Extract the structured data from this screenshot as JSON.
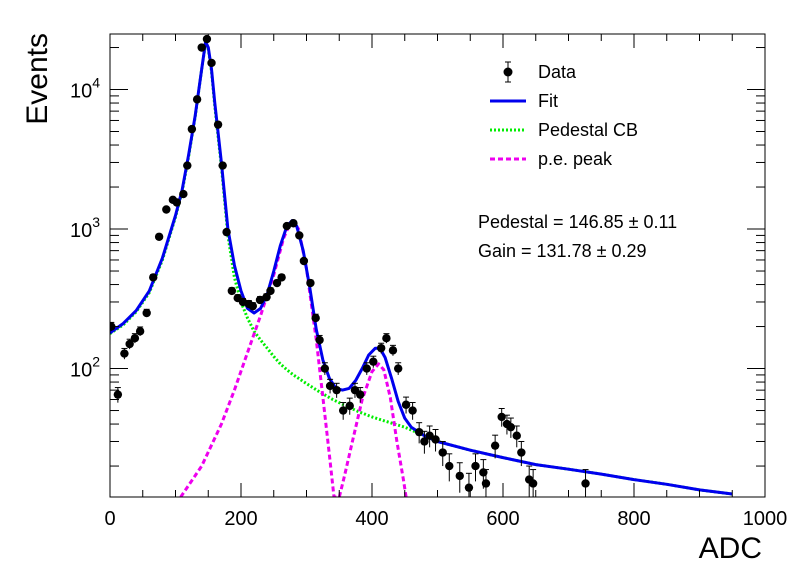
{
  "chart_data": {
    "type": "scatter",
    "xlabel": "ADC",
    "ylabel": "Events",
    "xlim": [
      0,
      1000
    ],
    "ylim": [
      12,
      25000
    ],
    "yscale": "log",
    "x_ticks": [
      {
        "value": 0,
        "label": "0"
      },
      {
        "value": 200,
        "label": "200"
      },
      {
        "value": 400,
        "label": "400"
      },
      {
        "value": 600,
        "label": "600"
      },
      {
        "value": 800,
        "label": "800"
      },
      {
        "value": 1000,
        "label": "1000"
      }
    ],
    "y_ticks": [
      {
        "value": 100,
        "base": "10",
        "exp": "2"
      },
      {
        "value": 1000,
        "base": "10",
        "exp": "3"
      },
      {
        "value": 10000,
        "base": "10",
        "exp": "4"
      }
    ],
    "grid": false,
    "legend_position": "top-right",
    "legend": [
      {
        "label": "Data",
        "series": "data"
      },
      {
        "label": "Fit",
        "series": "fit"
      },
      {
        "label": "Pedestal CB",
        "series": "pedestal"
      },
      {
        "label": "p.e. peak",
        "series": "pe"
      }
    ],
    "annotations": [
      {
        "label": "Pedestal = 146.85",
        "pm": "±",
        "value": "0.11"
      },
      {
        "label": "Gain = 131.78",
        "pm": "±",
        "value": "0.29"
      }
    ],
    "colors": {
      "data": "#000000",
      "fit": "#0000ee",
      "pedestal": "#00ee00",
      "pe": "#ee00ee"
    },
    "series": [
      {
        "id": "data",
        "style": "markers-errorbars",
        "points": [
          [
            2,
            200
          ],
          [
            12,
            65
          ],
          [
            22,
            128
          ],
          [
            30,
            150
          ],
          [
            38,
            165
          ],
          [
            46,
            185
          ],
          [
            56,
            250
          ],
          [
            66,
            450
          ],
          [
            75,
            880
          ],
          [
            86,
            1380
          ],
          [
            96,
            1620
          ],
          [
            102,
            1550
          ],
          [
            112,
            1780
          ],
          [
            118,
            2850
          ],
          [
            125,
            5200
          ],
          [
            133,
            8500
          ],
          [
            140,
            20000
          ],
          [
            148,
            23000
          ],
          [
            155,
            15500
          ],
          [
            165,
            5600
          ],
          [
            172,
            2850
          ],
          [
            178,
            950
          ],
          [
            186,
            360
          ],
          [
            195,
            320
          ],
          [
            203,
            300
          ],
          [
            212,
            290
          ],
          [
            218,
            280
          ],
          [
            229,
            310
          ],
          [
            239,
            325
          ],
          [
            245,
            360
          ],
          [
            255,
            410
          ],
          [
            262,
            450
          ],
          [
            270,
            1050
          ],
          [
            280,
            1100
          ],
          [
            289,
            900
          ],
          [
            296,
            590
          ],
          [
            306,
            410
          ],
          [
            314,
            230
          ],
          [
            320,
            160
          ],
          [
            328,
            100
          ],
          [
            336,
            75
          ],
          [
            346,
            70
          ],
          [
            356,
            50
          ],
          [
            366,
            54
          ],
          [
            374,
            70
          ],
          [
            382,
            65
          ],
          [
            392,
            100
          ],
          [
            402,
            112
          ],
          [
            414,
            140
          ],
          [
            422,
            165
          ],
          [
            432,
            135
          ],
          [
            440,
            100
          ],
          [
            452,
            55
          ],
          [
            462,
            50
          ],
          [
            472,
            35
          ],
          [
            480,
            30
          ],
          [
            488,
            33
          ],
          [
            497,
            31
          ],
          [
            508,
            25
          ],
          [
            518,
            20
          ],
          [
            534,
            17
          ],
          [
            548,
            14
          ],
          [
            558,
            20
          ],
          [
            570,
            18
          ],
          [
            574,
            15
          ],
          [
            588,
            28
          ],
          [
            598,
            45
          ],
          [
            606,
            40
          ],
          [
            612,
            38
          ],
          [
            621,
            33
          ],
          [
            628,
            25
          ],
          [
            640,
            16
          ],
          [
            646,
            15
          ],
          [
            726,
            15
          ]
        ]
      },
      {
        "id": "fit",
        "style": "line",
        "points": [
          [
            0,
            180
          ],
          [
            20,
            210
          ],
          [
            40,
            260
          ],
          [
            60,
            360
          ],
          [
            80,
            620
          ],
          [
            100,
            1250
          ],
          [
            110,
            1900
          ],
          [
            120,
            3400
          ],
          [
            130,
            6500
          ],
          [
            140,
            14000
          ],
          [
            146,
            22000
          ],
          [
            150,
            20000
          ],
          [
            155,
            14000
          ],
          [
            160,
            8000
          ],
          [
            170,
            3000
          ],
          [
            180,
            1000
          ],
          [
            190,
            550
          ],
          [
            200,
            360
          ],
          [
            210,
            270
          ],
          [
            220,
            250
          ],
          [
            230,
            270
          ],
          [
            240,
            340
          ],
          [
            250,
            500
          ],
          [
            260,
            760
          ],
          [
            270,
            1050
          ],
          [
            278,
            1150
          ],
          [
            285,
            1050
          ],
          [
            295,
            700
          ],
          [
            305,
            380
          ],
          [
            315,
            190
          ],
          [
            325,
            115
          ],
          [
            335,
            85
          ],
          [
            345,
            72
          ],
          [
            355,
            70
          ],
          [
            365,
            72
          ],
          [
            375,
            82
          ],
          [
            385,
            100
          ],
          [
            395,
            125
          ],
          [
            405,
            140
          ],
          [
            412,
            140
          ],
          [
            420,
            120
          ],
          [
            430,
            85
          ],
          [
            440,
            58
          ],
          [
            450,
            44
          ],
          [
            460,
            38
          ],
          [
            480,
            33
          ],
          [
            500,
            30
          ],
          [
            550,
            26
          ],
          [
            600,
            23
          ],
          [
            650,
            20.5
          ],
          [
            700,
            19
          ],
          [
            750,
            17.5
          ],
          [
            800,
            16
          ],
          [
            850,
            14.8
          ],
          [
            900,
            13.5
          ],
          [
            950,
            12.6
          ]
        ]
      },
      {
        "id": "pedestal",
        "style": "dotted",
        "points": [
          [
            0,
            178
          ],
          [
            20,
            205
          ],
          [
            40,
            255
          ],
          [
            60,
            350
          ],
          [
            80,
            600
          ],
          [
            100,
            1220
          ],
          [
            110,
            1850
          ],
          [
            120,
            3300
          ],
          [
            130,
            6400
          ],
          [
            140,
            14000
          ],
          [
            146,
            21500
          ],
          [
            150,
            19500
          ],
          [
            155,
            13500
          ],
          [
            160,
            7600
          ],
          [
            170,
            2800
          ],
          [
            180,
            900
          ],
          [
            190,
            450
          ],
          [
            200,
            300
          ],
          [
            210,
            230
          ],
          [
            220,
            185
          ],
          [
            230,
            160
          ],
          [
            240,
            140
          ],
          [
            250,
            122
          ],
          [
            260,
            108
          ],
          [
            270,
            98
          ],
          [
            280,
            90
          ],
          [
            300,
            78
          ],
          [
            320,
            68
          ],
          [
            340,
            60
          ],
          [
            360,
            54
          ],
          [
            380,
            49
          ],
          [
            400,
            45
          ],
          [
            420,
            42
          ],
          [
            450,
            38
          ],
          [
            480,
            33
          ],
          [
            500,
            30
          ],
          [
            550,
            26
          ],
          [
            600,
            23
          ],
          [
            650,
            20.5
          ],
          [
            700,
            19
          ],
          [
            750,
            17.5
          ],
          [
            800,
            16
          ],
          [
            850,
            14.8
          ],
          [
            900,
            13.5
          ],
          [
            950,
            12.6
          ]
        ]
      },
      {
        "id": "pe",
        "style": "dashed",
        "points": [
          [
            108,
            12
          ],
          [
            140,
            20
          ],
          [
            170,
            40
          ],
          [
            190,
            70
          ],
          [
            210,
            130
          ],
          [
            230,
            240
          ],
          [
            250,
            470
          ],
          [
            265,
            860
          ],
          [
            275,
            1100
          ],
          [
            280,
            1120
          ],
          [
            288,
            1000
          ],
          [
            300,
            520
          ],
          [
            315,
            160
          ],
          [
            325,
            62
          ],
          [
            335,
            24
          ],
          [
            342,
            12
          ],
          [
            350,
            12
          ],
          [
            358,
            17
          ],
          [
            370,
            30
          ],
          [
            385,
            60
          ],
          [
            400,
            95
          ],
          [
            410,
            108
          ],
          [
            418,
            98
          ],
          [
            428,
            62
          ],
          [
            438,
            30
          ],
          [
            448,
            16
          ],
          [
            452,
            12
          ]
        ]
      }
    ]
  }
}
